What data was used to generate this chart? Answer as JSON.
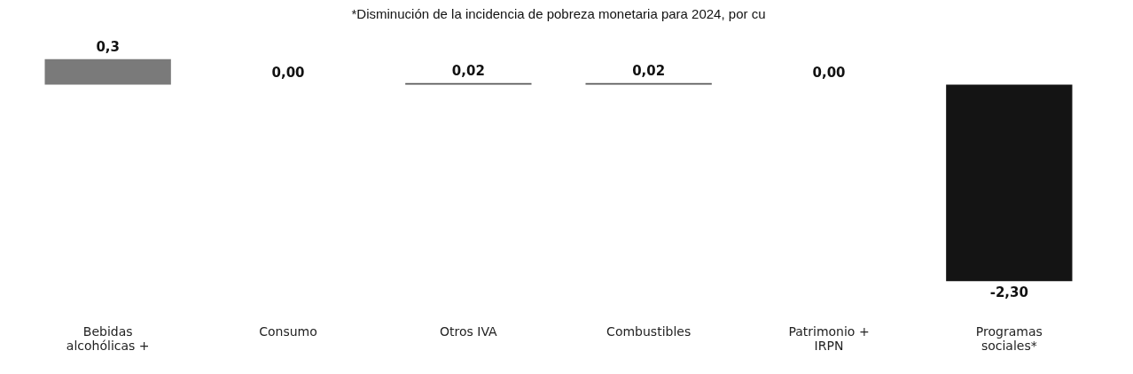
{
  "chart_data": {
    "type": "bar",
    "title": "*Disminución de la incidencia de pobreza monetaria para 2024, por cu",
    "categories": [
      "Bebidas alcohólicas +",
      "Consumo",
      "Otros IVA",
      "Combustibles",
      "Patrimonio + IRPN",
      "Programas sociales*"
    ],
    "values": [
      0.3,
      0.0,
      0.02,
      0.02,
      0.0,
      -2.3
    ],
    "value_labels": [
      "0,3",
      "0,00",
      "0,02",
      "0,02",
      "0,00",
      "-2,30"
    ],
    "colors": [
      "#7a7a7a",
      "#5a5a5a",
      "#5a5a5a",
      "#5a5a5a",
      "#5a5a5a",
      "#141414"
    ]
  }
}
